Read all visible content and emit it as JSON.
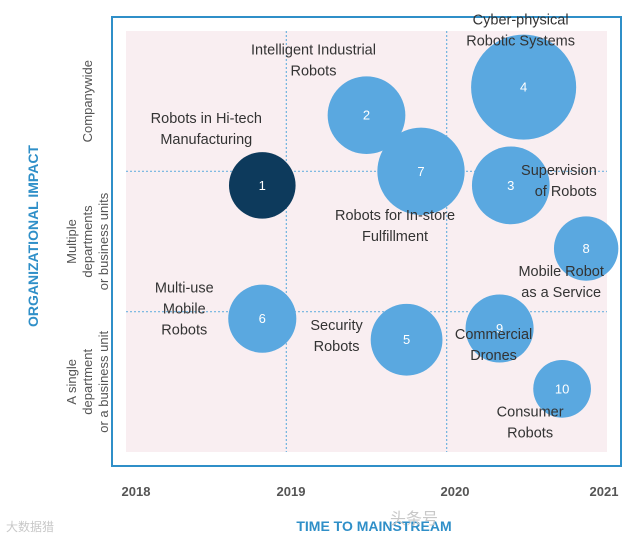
{
  "chart_data": {
    "type": "bubble",
    "xlabel": "TIME TO MAINSTREAM",
    "ylabel": "ORGANIZATIONAL IMPACT",
    "x_ticks": [
      "2018",
      "2019",
      "2020",
      "2021"
    ],
    "xlim": [
      2018,
      2021
    ],
    "y_categories": [
      "A single department or a business unit",
      "Multiple departments or business units",
      "Companywide"
    ],
    "y_category_lines": [
      [
        "A single",
        "department",
        "or a business unit"
      ],
      [
        "Multiple",
        "departments",
        "or business units"
      ],
      [
        "Companywide"
      ]
    ],
    "ylim": [
      0,
      3
    ],
    "grid": true,
    "points": [
      {
        "id": "1",
        "name": "Robots in Hi-tech Manufacturing",
        "name_lines": [
          "Robots in Hi-tech",
          "Manufacturing"
        ],
        "x": 2018.85,
        "y": 1.9,
        "size": 0.9,
        "color": "#0d3a5c"
      },
      {
        "id": "2",
        "name": "Intelligent Industrial Robots",
        "name_lines": [
          "Intelligent Industrial",
          "Robots"
        ],
        "x": 2019.5,
        "y": 2.4,
        "size": 1.05,
        "color": "#5aa8e0"
      },
      {
        "id": "3",
        "name": "Supervision of Robots",
        "name_lines": [
          "Supervision",
          "of Robots"
        ],
        "x": 2020.4,
        "y": 1.9,
        "size": 1.05,
        "color": "#5aa8e0"
      },
      {
        "id": "4",
        "name": "Cyber-physical Robotic Systems",
        "name_lines": [
          "Cyber-physical",
          "Robotic Systems"
        ],
        "x": 2020.48,
        "y": 2.6,
        "size": 1.42,
        "color": "#5aa8e0"
      },
      {
        "id": "5",
        "name": "Security Robots",
        "name_lines": [
          "Security",
          "Robots"
        ],
        "x": 2019.75,
        "y": 0.8,
        "size": 0.97,
        "color": "#5aa8e0"
      },
      {
        "id": "6",
        "name": "Multi-use Mobile Robots",
        "name_lines": [
          "Multi-use",
          "Mobile",
          "Robots"
        ],
        "x": 2018.85,
        "y": 0.95,
        "size": 0.92,
        "color": "#5aa8e0"
      },
      {
        "id": "7",
        "name": "Robots for In-store Fulfillment",
        "name_lines": [
          "Robots for In-store",
          "Fulfillment"
        ],
        "x": 2019.84,
        "y": 2.0,
        "size": 1.18,
        "color": "#5aa8e0"
      },
      {
        "id": "8",
        "name": "Mobile Robot as a Service",
        "name_lines": [
          "Mobile Robot",
          "as a Service"
        ],
        "x": 2020.87,
        "y": 1.45,
        "size": 0.87,
        "color": "#5aa8e0"
      },
      {
        "id": "9",
        "name": "Commercial Drones",
        "name_lines": [
          "Commercial",
          "Drones"
        ],
        "x": 2020.33,
        "y": 0.88,
        "size": 0.92,
        "color": "#5aa8e0"
      },
      {
        "id": "10",
        "name": "Consumer Robots",
        "name_lines": [
          "Consumer",
          "Robots"
        ],
        "x": 2020.72,
        "y": 0.45,
        "size": 0.78,
        "color": "#5aa8e0"
      }
    ]
  },
  "watermark": {
    "left": "大数据猎",
    "center": "头条号"
  },
  "colors": {
    "frame": "#2f8fc8",
    "grid": "#6fb3df",
    "axis_title": "#2f8fc8",
    "band_fill": "#f9eef1",
    "highlight": "#0d3a5c",
    "bubble": "#5aa8e0"
  }
}
